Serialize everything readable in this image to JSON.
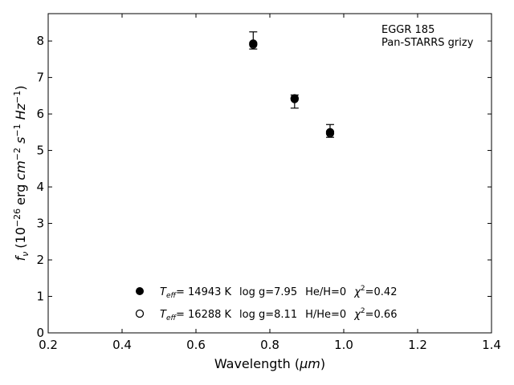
{
  "chart_data": {
    "type": "scatter",
    "title": "",
    "xlabel_base": "Wavelength (",
    "xlabel_unit": "μm",
    "xlabel_end": ")",
    "ylabel_var": "f",
    "ylabel_sub": "ν",
    "ylabel_pre": "(10",
    "ylabel_exp1": "−26",
    "ylabel_erg": "erg",
    "ylabel_cm": "cm",
    "ylabel_exp2": "−2",
    "ylabel_s": "s",
    "ylabel_exp3": "−1",
    "ylabel_hz": "Hz",
    "ylabel_exp4": "−1",
    "ylabel_close": ")",
    "xlim": [
      0.2,
      1.4
    ],
    "ylim": [
      0,
      8.75
    ],
    "xticks": [
      0.2,
      0.4,
      0.6,
      0.8,
      1.0,
      1.2,
      1.4
    ],
    "xtick_labels": [
      "0.2",
      "0.4",
      "0.6",
      "0.8",
      "1.0",
      "1.2",
      "1.4"
    ],
    "yticks": [
      0,
      1,
      2,
      3,
      4,
      5,
      6,
      7,
      8
    ],
    "ytick_labels": [
      "0",
      "1",
      "2",
      "3",
      "4",
      "5",
      "6",
      "7",
      "8"
    ],
    "annotation_lines": [
      "EGGR 185",
      "Pan-STARRS grizy"
    ],
    "observed": [
      {
        "x": 0.755,
        "y": 7.95,
        "err_low": 0.17,
        "err_high": 0.3
      },
      {
        "x": 0.867,
        "y": 6.42,
        "err_low": 0.26,
        "err_high": 0.1
      },
      {
        "x": 0.963,
        "y": 5.49,
        "err_low": 0.13,
        "err_high": 0.22
      }
    ],
    "models": [
      {
        "marker": "filled",
        "teff_sym": "T",
        "teff_sub": "eff",
        "teff_value": "= 14943 K",
        "logg": "log g=7.95",
        "comp": "He/H=0",
        "chi_sym": "χ",
        "chi_sup": "2",
        "chi_value": "=0.42",
        "points": [
          {
            "x": 0.755,
            "y": 7.93
          },
          {
            "x": 0.867,
            "y": 6.43
          },
          {
            "x": 0.963,
            "y": 5.5
          }
        ]
      },
      {
        "marker": "open",
        "teff_sym": "T",
        "teff_sub": "eff",
        "teff_value": "= 16288 K",
        "logg": "log g=8.11",
        "comp": "H/He=0",
        "chi_sym": "χ",
        "chi_sup": "2",
        "chi_value": "=0.66",
        "points": [
          {
            "x": 0.755,
            "y": 7.9
          },
          {
            "x": 0.867,
            "y": 6.41
          },
          {
            "x": 0.963,
            "y": 5.47
          }
        ]
      }
    ],
    "legend_placement": "lower-center",
    "grid": false
  }
}
